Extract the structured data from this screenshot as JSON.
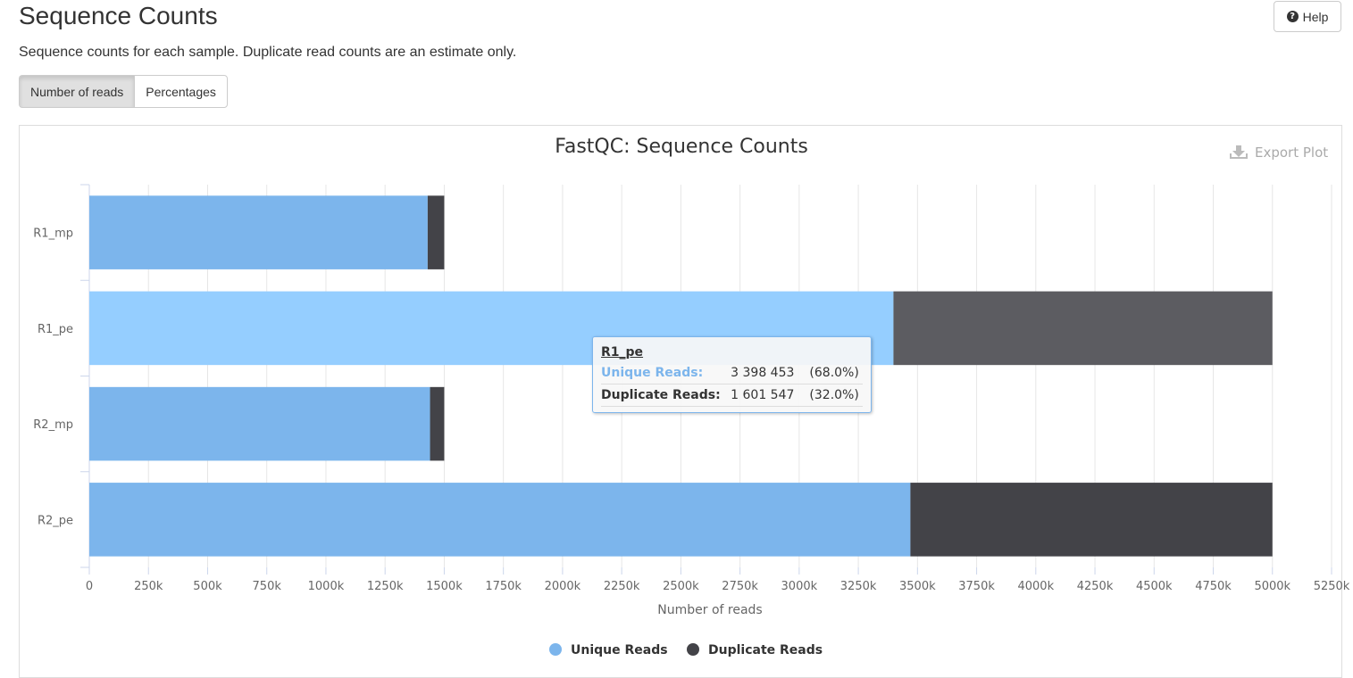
{
  "header": {
    "title": "Sequence Counts",
    "help_label": "Help",
    "description": "Sequence counts for each sample. Duplicate read counts are an estimate only."
  },
  "toggle": {
    "options": [
      "Number of reads",
      "Percentages"
    ],
    "selected": "Number of reads"
  },
  "export_label": "Export Plot",
  "chart_data": {
    "type": "bar",
    "orientation": "horizontal",
    "stacked": true,
    "title": "FastQC: Sequence Counts",
    "xlabel": "Number of reads",
    "ylabel": "",
    "categories": [
      "R1_mp",
      "R1_pe",
      "R2_mp",
      "R2_pe"
    ],
    "series": [
      {
        "name": "Unique Reads",
        "color": "#7cb5ec",
        "values": [
          1430000,
          3398453,
          1440000,
          3470000
        ]
      },
      {
        "name": "Duplicate Reads",
        "color": "#434348",
        "values": [
          70000,
          1601547,
          60000,
          1530000
        ]
      }
    ],
    "xlim": [
      0,
      5250000
    ],
    "xticks": [
      0,
      250000,
      500000,
      750000,
      1000000,
      1250000,
      1500000,
      1750000,
      2000000,
      2250000,
      2500000,
      2750000,
      3000000,
      3250000,
      3500000,
      3750000,
      4000000,
      4250000,
      4500000,
      4750000,
      5000000,
      5250000
    ],
    "xtick_labels": [
      "0",
      "250k",
      "500k",
      "750k",
      "1000k",
      "1250k",
      "1500k",
      "1750k",
      "2000k",
      "2250k",
      "2500k",
      "2750k",
      "3000k",
      "3250k",
      "3500k",
      "3750k",
      "4000k",
      "4250k",
      "4500k",
      "4750k",
      "5000k",
      "5250k"
    ],
    "grid": true,
    "legend": "bottom-center",
    "highlighted": "R1_pe"
  },
  "tooltip": {
    "sample": "R1_pe",
    "rows": [
      {
        "name": "Unique Reads:",
        "value": "3 398 453",
        "pct": "(68.0%)"
      },
      {
        "name": "Duplicate Reads:",
        "value": "1 601 547",
        "pct": "(32.0%)"
      }
    ]
  }
}
